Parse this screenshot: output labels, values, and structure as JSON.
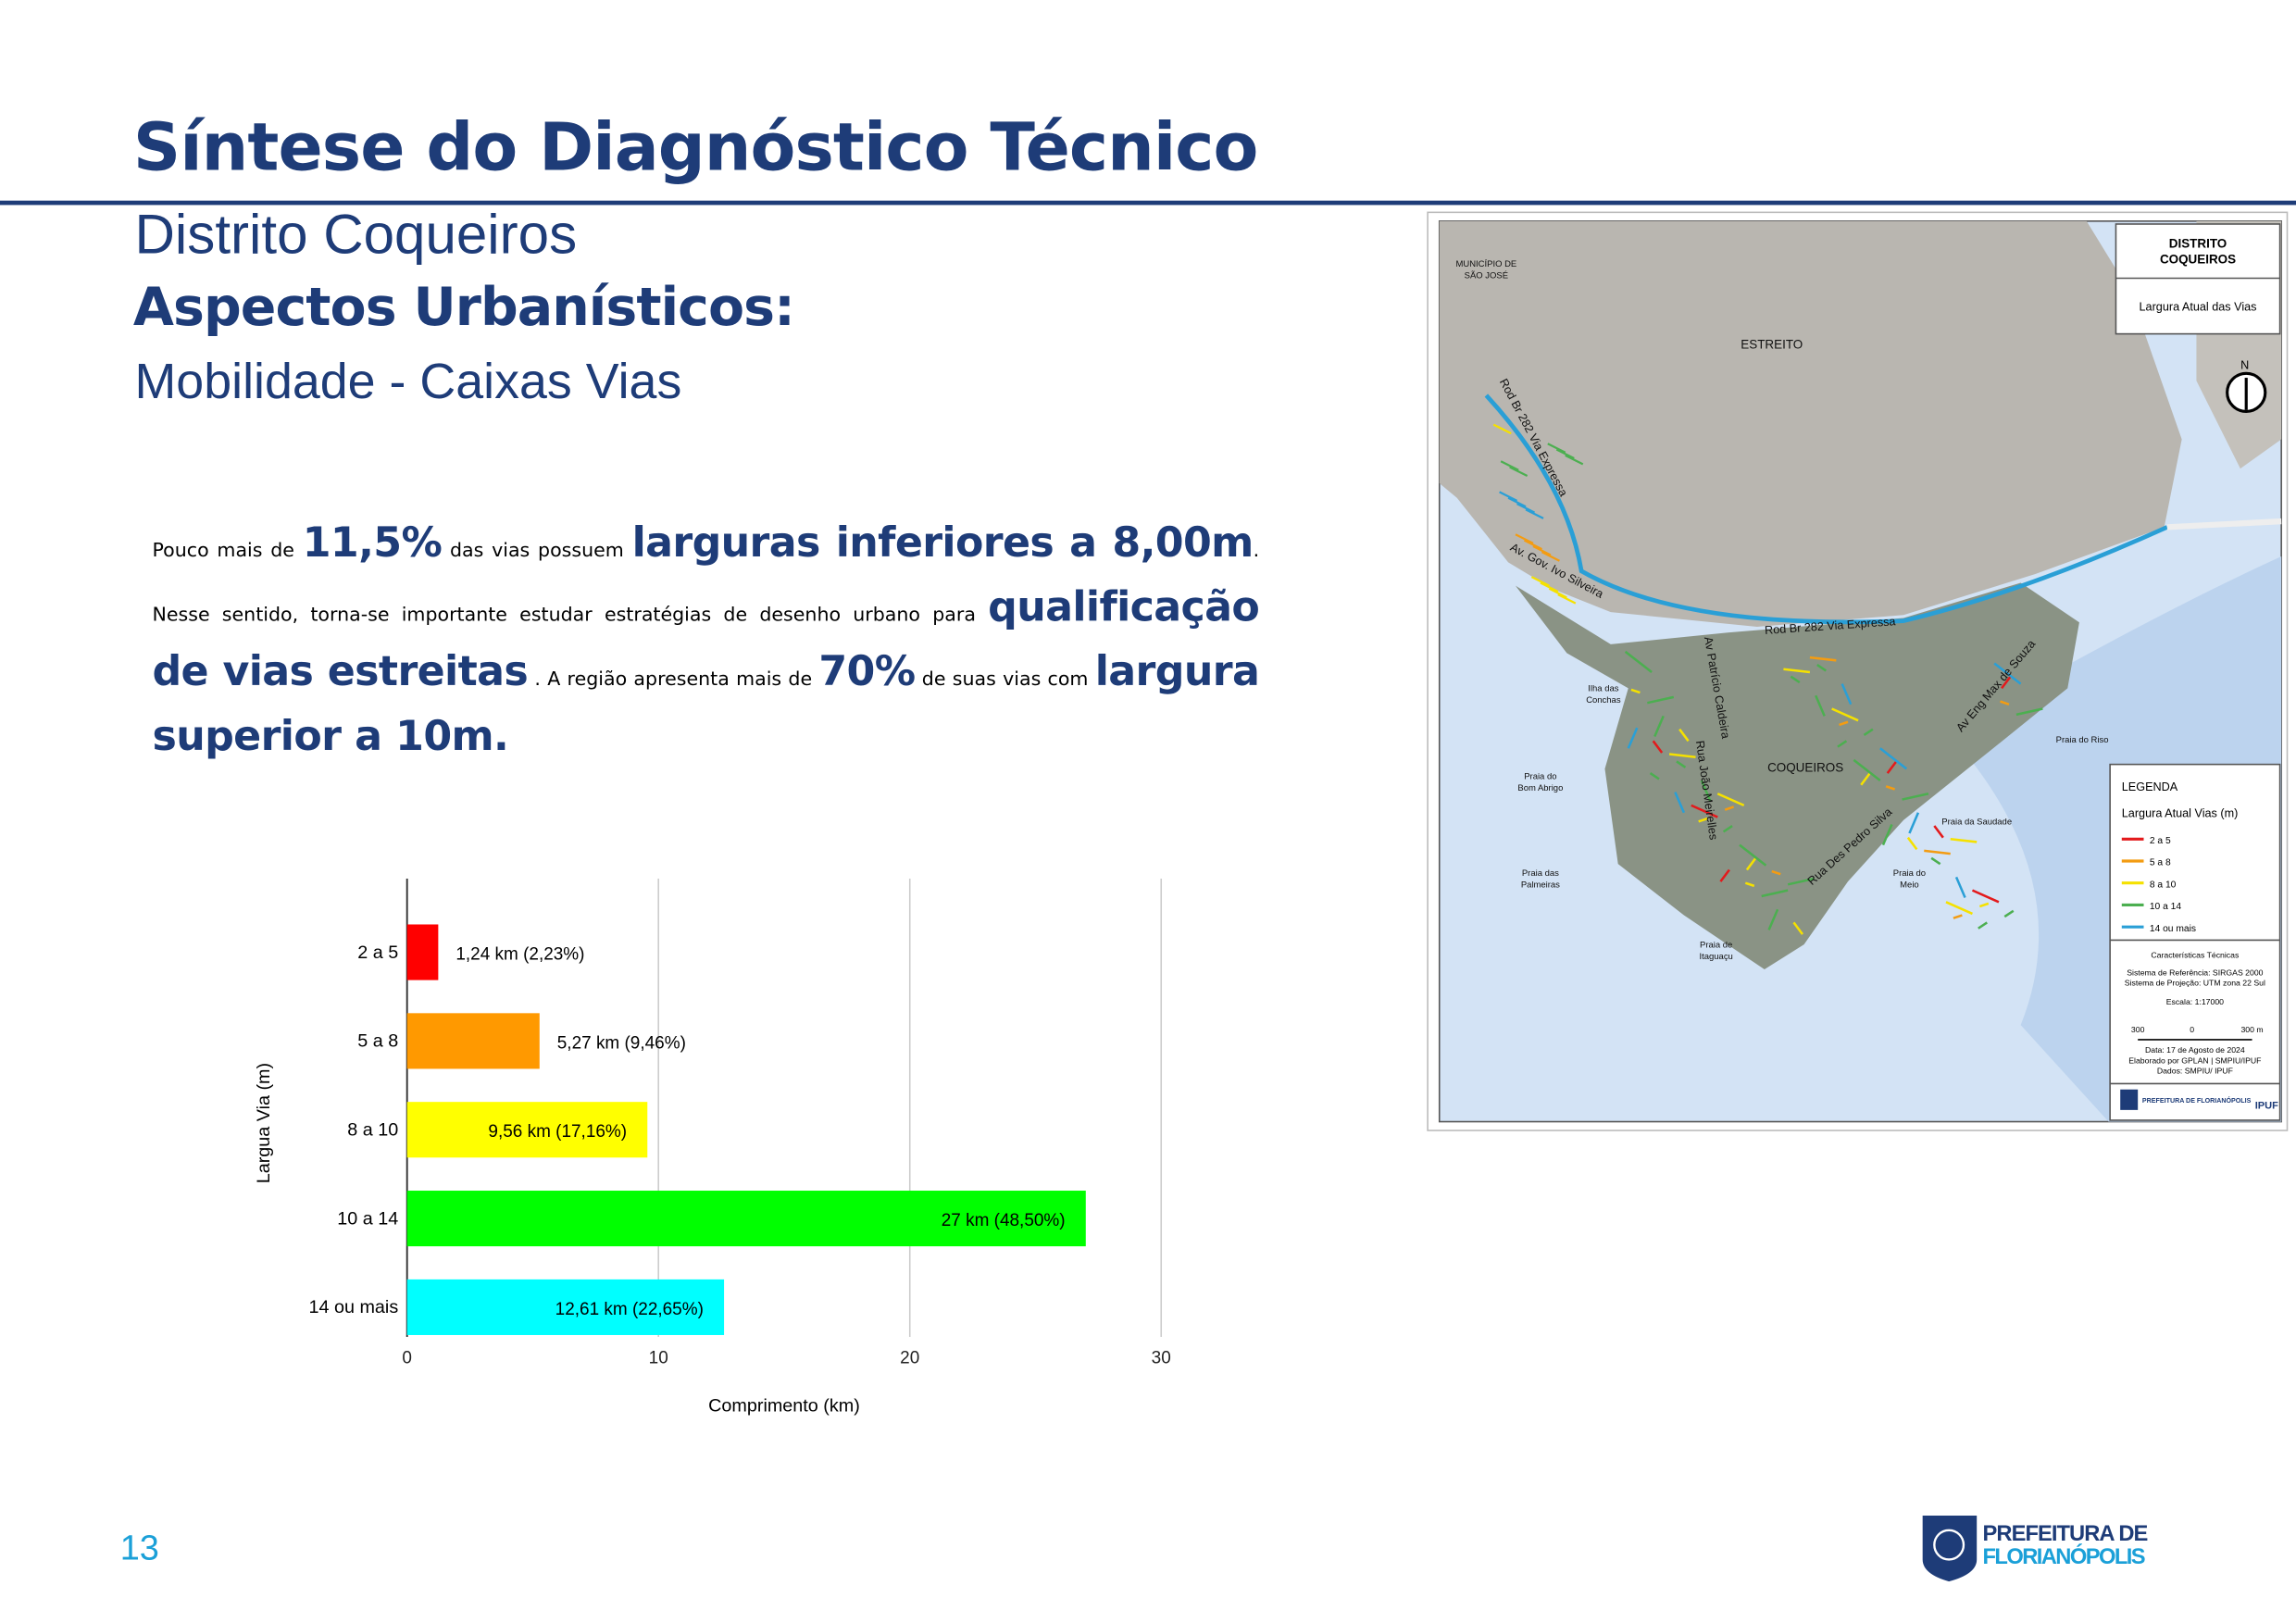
{
  "header": {
    "title": "Síntese do Diagnóstico Técnico",
    "district": "Distrito Coqueiros",
    "section": "Aspectos Urbanísticos:",
    "subsection": "Mobilidade - Caixas Vias"
  },
  "paragraph": [
    {
      "text": "Pouco mais de ",
      "emphasis": false
    },
    {
      "text": "11,5%",
      "emphasis": true
    },
    {
      "text": " das vias possuem ",
      "emphasis": false
    },
    {
      "text": "larguras inferiores a 8,00m",
      "emphasis": true
    },
    {
      "text": ". Nesse sentido, torna-se importante estudar estratégias de desenho urbano para ",
      "emphasis": false
    },
    {
      "text": "qualificação de vias estreitas",
      "emphasis": true
    },
    {
      "text": " . A região apresenta mais de ",
      "emphasis": false
    },
    {
      "text": "70%",
      "emphasis": true
    },
    {
      "text": " de suas vias com ",
      "emphasis": false
    },
    {
      "text": "largura superior a 10m.",
      "emphasis": true
    }
  ],
  "chart_data": {
    "type": "hbar",
    "categories": [
      "2 a 5",
      "5 a 8",
      "8 a 10",
      "10 a 14",
      "14 ou mais"
    ],
    "values": [
      1.24,
      5.27,
      9.56,
      27,
      12.61
    ],
    "value_labels": [
      "1,24 km (2,23%)",
      "5,27 km (9,46%)",
      "9,56 km (17,16%)",
      "27 km (48,50%)",
      "12,61 km (22,65%)"
    ],
    "colors": [
      "#ff0000",
      "#ff9900",
      "#ffff00",
      "#00ff00",
      "#00ffff"
    ],
    "xlim": [
      0,
      30
    ],
    "xticks": [
      0,
      10,
      20,
      30
    ],
    "xlabel": "Comprimento (km)",
    "ylabel": "Largua Via (m)",
    "grid": true
  },
  "map": {
    "title": [
      "DISTRITO",
      "COQUEIROS"
    ],
    "subtitle": "Largura Atual das Vias",
    "north": "N",
    "places": [
      {
        "lines": [
          "MUNICÍPIO DE",
          "SÃO JOSÉ"
        ]
      },
      {
        "lines": [
          "ESTREITO"
        ]
      },
      {
        "lines": [
          "Rod Br 282 Via Expressa"
        ]
      },
      {
        "lines": [
          "Rod Br 282 Via Expressa"
        ]
      },
      {
        "lines": [
          "Av. Gov. Ivo Silveira"
        ]
      },
      {
        "lines": [
          "Av Patrício Caldeira"
        ]
      },
      {
        "lines": [
          "Rua João Meirelles"
        ]
      },
      {
        "lines": [
          "Rua Des Pedro Silva"
        ]
      },
      {
        "lines": [
          "Av Eng Max de Souza"
        ]
      },
      {
        "lines": [
          "COQUEIROS"
        ]
      },
      {
        "lines": [
          "Ilha das",
          "Conchas"
        ]
      },
      {
        "lines": [
          "Praia do",
          "Bom Abrigo"
        ]
      },
      {
        "lines": [
          "Praia das",
          "Palmeiras"
        ]
      },
      {
        "lines": [
          "Praia de",
          "Itaguaçu"
        ]
      },
      {
        "lines": [
          "Praia do",
          "Meio"
        ]
      },
      {
        "lines": [
          "Praia da Saudade"
        ]
      },
      {
        "lines": [
          "Praia do Riso"
        ]
      }
    ],
    "legend": {
      "title": "LEGENDA",
      "subtitle": "Largura Atual Vias (m)",
      "items": [
        {
          "label": "2 a 5",
          "color": "#e31a1c"
        },
        {
          "label": "5 a 8",
          "color": "#f39c12"
        },
        {
          "label": "8 a 10",
          "color": "#f5e100"
        },
        {
          "label": "10 a 14",
          "color": "#4caf50"
        },
        {
          "label": "14 ou mais",
          "color": "#2a9fd6"
        }
      ]
    },
    "tech": [
      "Características Técnicas",
      "Sistema de Referência: SIRGAS 2000",
      "Sistema de Projeção: UTM zona 22 Sul",
      "Escala: 1:17000"
    ],
    "scale": [
      "300",
      "0",
      "300 m"
    ],
    "credits": [
      "Data: 17 de Agosto de 2024",
      "Elaborado por GPLAN | SMPIU/IPUF",
      "Dados: SMPIU/ IPUF"
    ],
    "logos": [
      "PREFEITURA DE FLORIANÓPOLIS",
      "IPUF"
    ]
  },
  "footer": {
    "page": "13",
    "logo": [
      "PREFEITURA DE",
      "FLORIANÓPOLIS"
    ]
  }
}
